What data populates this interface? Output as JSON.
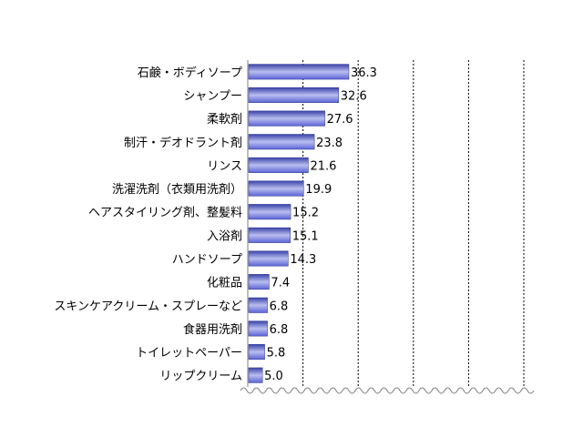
{
  "chart_data": {
    "type": "bar",
    "orientation": "horizontal",
    "categories": [
      "石鹸・ボディソープ",
      "シャンプー",
      "柔軟剤",
      "制汗・デオドラント剤",
      "リンス",
      "洗濯洗剤（衣類用洗剤）",
      "ヘアスタイリング剤、整髪料",
      "入浴剤",
      "ハンドソープ",
      "化粧品",
      "スキンケアクリーム・スプレーなど",
      "食器用洗剤",
      "トイレットペーパー",
      "リップクリーム"
    ],
    "values": [
      36.3,
      32.6,
      27.6,
      23.8,
      21.6,
      19.9,
      15.2,
      15.1,
      14.3,
      7.4,
      6.8,
      6.8,
      5.8,
      5.0
    ],
    "value_labels": [
      "36.3",
      "32.6",
      "27.6",
      "23.8",
      "21.6",
      "19.9",
      "15.2",
      "15.1",
      "14.3",
      "7.4",
      "6.8",
      "6.8",
      "5.8",
      "5.0"
    ],
    "xlim": [
      0,
      100
    ],
    "grid": true,
    "bar_color": "#5b63d6",
    "bar_color_light": "#b9beef",
    "bar_color_dark": "#3a42a8",
    "title": "",
    "xlabel": "",
    "ylabel": ""
  }
}
